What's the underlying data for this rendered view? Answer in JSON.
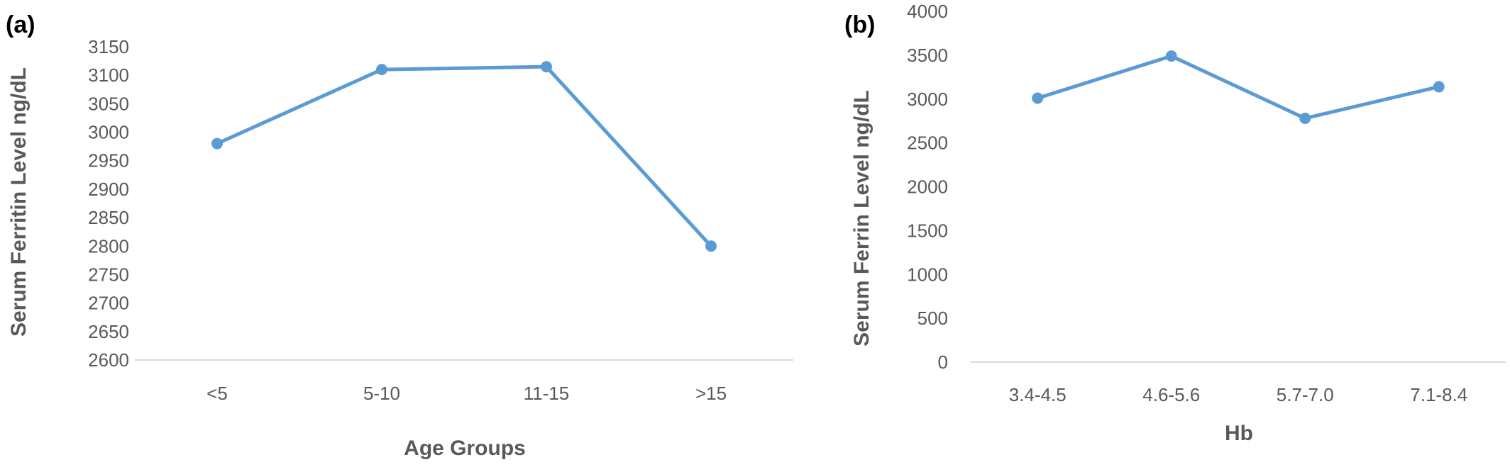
{
  "colors": {
    "series": "#5b9bd5",
    "axis_text": "#595959",
    "baseline": "#d9d9d9"
  },
  "chart_data": [
    {
      "panel_label": "(a)",
      "type": "line",
      "xlabel": "Age Groups",
      "ylabel": "Serum Ferritin Level ng/dL",
      "categories": [
        "<5",
        "5-10",
        "11-15",
        ">15"
      ],
      "series": [
        {
          "values": [
            2980,
            3110,
            3115,
            2800
          ]
        }
      ],
      "ylim": [
        2600,
        3150
      ],
      "yticks": [
        2600,
        2650,
        2700,
        2750,
        2800,
        2850,
        2900,
        2950,
        3000,
        3050,
        3100,
        3150
      ],
      "grid": false
    },
    {
      "panel_label": "(b)",
      "type": "line",
      "xlabel": "Hb",
      "ylabel": "Serum Ferrin Level ng/dL",
      "categories": [
        "3.4-4.5",
        "4.6-5.6",
        "5.7-7.0",
        "7.1-8.4"
      ],
      "series": [
        {
          "values": [
            3010,
            3490,
            2780,
            3140
          ]
        }
      ],
      "ylim": [
        0,
        4000
      ],
      "yticks": [
        0,
        500,
        1000,
        1500,
        2000,
        2500,
        3000,
        3500,
        4000
      ],
      "grid": false
    }
  ]
}
